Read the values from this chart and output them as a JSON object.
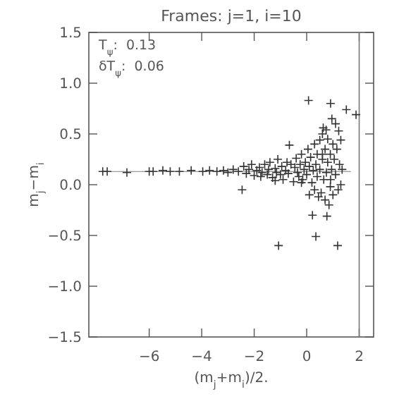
{
  "chart_data": {
    "type": "scatter",
    "title": "Frames: j=1, i=10",
    "xlabel": "(m$_{j}$+m$_{i}$)/2.",
    "ylabel": "m$_{j}$−m$_{i}$",
    "annotations": [
      "T$_{ψ}$:  0.13",
      "δT$_{ψ}$:  0.06"
    ],
    "xlim": [
      -8.3,
      2.55
    ],
    "ylim": [
      -1.5,
      1.5
    ],
    "xticks": [
      {
        "value": -6,
        "label": "−6"
      },
      {
        "value": -4,
        "label": "−4"
      },
      {
        "value": -2,
        "label": "−2"
      },
      0,
      2
    ],
    "yticks": [
      {
        "value": -1.5,
        "label": "−1.5"
      },
      {
        "value": -1,
        "label": "−1.0"
      },
      {
        "value": -0.5,
        "label": "−0.5"
      },
      {
        "value": 0,
        "label": "0.0"
      },
      {
        "value": 0.5,
        "label": "0.5"
      },
      {
        "value": 1,
        "label": "1.0"
      },
      {
        "value": 1.5,
        "label": "1.5"
      }
    ],
    "ref_lines": [
      {
        "axis": "x",
        "value": 2,
        "color": "#777777"
      }
    ],
    "series": [
      {
        "type": "line",
        "color": "#999999",
        "x": [
          -7.8,
          1.68
        ],
        "values": [
          0.13,
          0.13
        ]
      },
      {
        "color": "#333333",
        "marker": "cross",
        "x": [
          -7.77,
          -7.6,
          -6.85,
          -6.0,
          -5.85,
          -5.48,
          -5.2,
          -4.85,
          -4.4,
          -3.96,
          -3.7,
          -3.42,
          -3.17,
          -3.0,
          -2.8,
          -2.6,
          -2.46,
          -2.4,
          -2.3,
          -2.2,
          -2.1,
          -2.0,
          -1.9,
          -1.8,
          -1.75,
          -1.7,
          -1.6,
          -1.5,
          -1.45,
          -1.4,
          -1.3,
          -1.2,
          -1.15,
          -1.1,
          -1.0,
          -0.95,
          -0.9,
          -0.8,
          -0.75,
          -0.7,
          -0.66,
          -0.6,
          -0.5,
          -0.45,
          -0.4,
          -0.35,
          -0.3,
          -0.25,
          -0.2,
          -0.15,
          -0.1,
          -0.05,
          0.0,
          0.05,
          0.07,
          0.1,
          0.1,
          0.15,
          0.2,
          0.22,
          0.25,
          0.3,
          0.3,
          0.35,
          0.4,
          0.4,
          0.45,
          0.5,
          0.5,
          0.55,
          0.6,
          0.6,
          0.63,
          0.65,
          0.7,
          0.7,
          0.74,
          0.75,
          0.77,
          0.8,
          0.8,
          0.85,
          0.9,
          0.91,
          0.91,
          0.95,
          0.96,
          1.0,
          1.0,
          1.05,
          1.1,
          1.1,
          1.15,
          1.18,
          1.2,
          1.22,
          1.25,
          1.3,
          1.3,
          1.35,
          1.51,
          -1.07,
          0.35,
          -0.2,
          0.6,
          -1.2,
          0.9,
          1.88
        ],
        "values": [
          0.13,
          0.13,
          0.12,
          0.13,
          0.13,
          0.14,
          0.13,
          0.13,
          0.14,
          0.13,
          0.14,
          0.13,
          0.14,
          0.12,
          0.15,
          0.13,
          -0.05,
          0.18,
          0.11,
          0.15,
          0.2,
          0.09,
          0.14,
          0.17,
          0.08,
          0.12,
          0.2,
          0.1,
          0.15,
          0.22,
          0.07,
          0.16,
          0.12,
          0.25,
          0.1,
          0.18,
          0.05,
          0.14,
          0.22,
          0.11,
          0.39,
          0.2,
          0.03,
          0.17,
          0.26,
          0.12,
          0.08,
          0.2,
          0.3,
          0.05,
          0.15,
          0.22,
          0.1,
          0.35,
          0.83,
          -0.1,
          0.18,
          0.27,
          0.02,
          -0.3,
          0.14,
          0.4,
          -0.05,
          0.2,
          0.08,
          0.3,
          -0.12,
          0.15,
          0.44,
          -0.08,
          0.25,
          0.5,
          0.56,
          0.05,
          0.35,
          -0.15,
          0.54,
          0.12,
          -0.31,
          0.45,
          0.22,
          -0.2,
          0.3,
          0.8,
          0.05,
          0.15,
          0.65,
          0.4,
          -0.1,
          0.25,
          0.6,
          0.1,
          0.35,
          -0.6,
          -0.05,
          0.53,
          0.2,
          0.44,
          0.0,
          0.15,
          0.74,
          -0.6,
          -0.51,
          0.02,
          0.3,
          0.04,
          -0.02,
          0.69
        ]
      }
    ]
  }
}
